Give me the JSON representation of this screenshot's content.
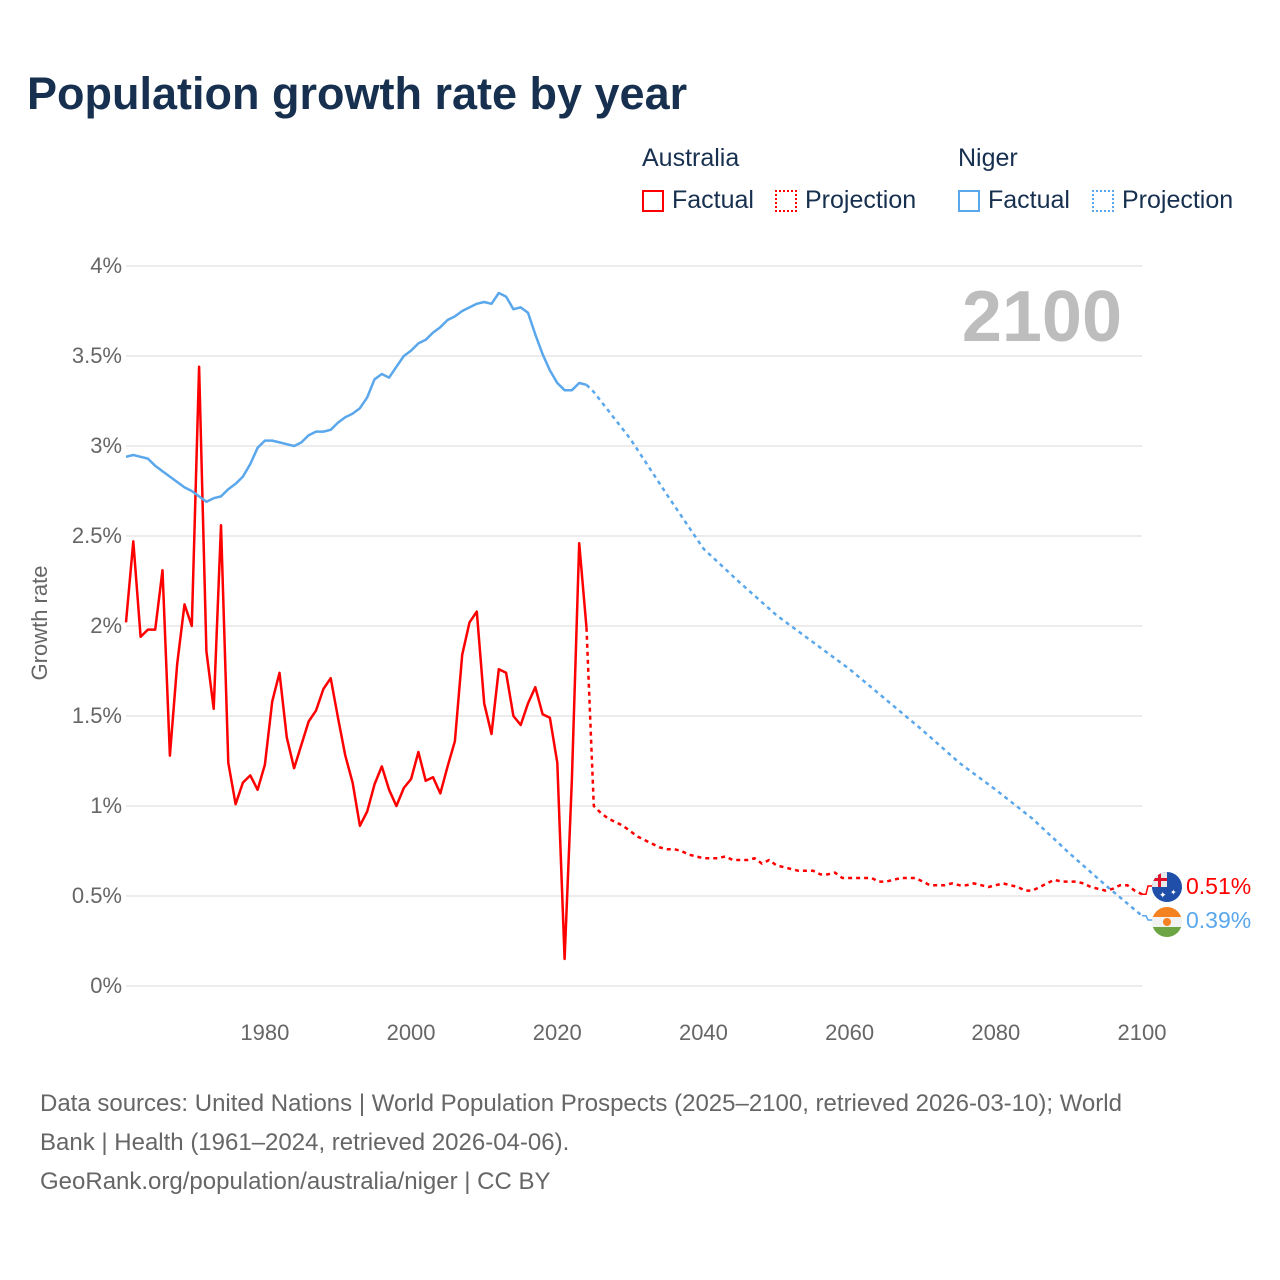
{
  "title": "Population growth rate by year",
  "legend": {
    "groups": [
      {
        "country": "Australia",
        "factual": "Factual",
        "projection": "Projection",
        "color": "#ff0000"
      },
      {
        "country": "Niger",
        "factual": "Factual",
        "projection": "Projection",
        "color": "#5aa7ec"
      }
    ]
  },
  "current_year": "2100",
  "end_labels": {
    "australia": "0.51%",
    "niger": "0.39%"
  },
  "footer": {
    "line1": "Data sources: United Nations | World Population Prospects (2025–2100, retrieved 2026-03-10); World",
    "line2": "Bank | Health (1961–2024, retrieved 2026-04-06).",
    "line3": "GeoRank.org/population/australia/niger | CC BY"
  },
  "chart_data": {
    "type": "line",
    "title": "Population growth rate by year",
    "xlabel": "",
    "ylabel": "Growth rate",
    "xlim": [
      1961,
      2100
    ],
    "ylim": [
      0,
      4
    ],
    "x_ticks": [
      1980,
      2000,
      2020,
      2040,
      2060,
      2080,
      2100
    ],
    "x_tick_labels": [
      "1980",
      "2000",
      "2020",
      "2040",
      "2060",
      "2080",
      "2100"
    ],
    "y_ticks": [
      0,
      0.5,
      1,
      1.5,
      2,
      2.5,
      3,
      3.5,
      4
    ],
    "y_tick_labels": [
      "0%",
      "0.5%",
      "1%",
      "1.5%",
      "2%",
      "2.5%",
      "3%",
      "3.5%",
      "4%"
    ],
    "grid": true,
    "legend_position": "top-right",
    "series": [
      {
        "name": "Australia Factual",
        "color": "#ff0000",
        "style": "solid",
        "x_start": 1961,
        "values": [
          2.02,
          2.47,
          1.94,
          1.98,
          1.98,
          2.31,
          1.28,
          1.79,
          2.12,
          2.0,
          3.44,
          1.86,
          1.54,
          2.56,
          1.24,
          1.01,
          1.13,
          1.17,
          1.09,
          1.23,
          1.58,
          1.74,
          1.38,
          1.21,
          1.34,
          1.47,
          1.53,
          1.65,
          1.71,
          1.49,
          1.28,
          1.13,
          0.89,
          0.97,
          1.12,
          1.22,
          1.09,
          1.0,
          1.1,
          1.15,
          1.3,
          1.14,
          1.16,
          1.07,
          1.22,
          1.36,
          1.84,
          2.02,
          2.08,
          1.57,
          1.4,
          1.76,
          1.74,
          1.5,
          1.45,
          1.57,
          1.66,
          1.51,
          1.49,
          1.24,
          0.15,
          1.15,
          2.46,
          1.99
        ]
      },
      {
        "name": "Australia Projection",
        "color": "#ff0000",
        "style": "dotted",
        "x_start": 2024,
        "values": [
          1.99,
          1.0,
          0.96,
          0.93,
          0.91,
          0.89,
          0.86,
          0.83,
          0.81,
          0.79,
          0.77,
          0.76,
          0.76,
          0.75,
          0.73,
          0.72,
          0.71,
          0.71,
          0.71,
          0.72,
          0.7,
          0.7,
          0.7,
          0.71,
          0.68,
          0.7,
          0.67,
          0.66,
          0.65,
          0.64,
          0.64,
          0.64,
          0.62,
          0.62,
          0.63,
          0.6,
          0.6,
          0.6,
          0.6,
          0.6,
          0.58,
          0.58,
          0.59,
          0.6,
          0.6,
          0.6,
          0.58,
          0.56,
          0.56,
          0.56,
          0.57,
          0.56,
          0.56,
          0.57,
          0.56,
          0.55,
          0.56,
          0.57,
          0.56,
          0.55,
          0.53,
          0.53,
          0.55,
          0.57,
          0.59,
          0.58,
          0.58,
          0.58,
          0.57,
          0.55,
          0.54,
          0.53,
          0.54,
          0.56,
          0.56,
          0.53,
          0.51
        ]
      },
      {
        "name": "Niger Factual",
        "color": "#5aa7ec",
        "style": "solid",
        "x_start": 1961,
        "values": [
          2.94,
          2.95,
          2.94,
          2.93,
          2.89,
          2.86,
          2.83,
          2.8,
          2.77,
          2.75,
          2.72,
          2.69,
          2.71,
          2.72,
          2.76,
          2.79,
          2.83,
          2.9,
          2.99,
          3.03,
          3.03,
          3.02,
          3.01,
          3.0,
          3.02,
          3.06,
          3.08,
          3.08,
          3.09,
          3.13,
          3.16,
          3.18,
          3.21,
          3.27,
          3.37,
          3.4,
          3.38,
          3.44,
          3.5,
          3.53,
          3.57,
          3.59,
          3.63,
          3.66,
          3.7,
          3.72,
          3.75,
          3.77,
          3.79,
          3.8,
          3.79,
          3.85,
          3.83,
          3.76,
          3.77,
          3.74,
          3.62,
          3.51,
          3.42,
          3.35,
          3.31,
          3.31,
          3.35,
          3.34
        ]
      },
      {
        "name": "Niger Projection",
        "color": "#5aa7ec",
        "style": "dotted",
        "x": [
          2024,
          2025,
          2030,
          2035,
          2040,
          2045,
          2050,
          2055,
          2060,
          2065,
          2070,
          2075,
          2080,
          2085,
          2090,
          2095,
          2100
        ],
        "values": [
          3.34,
          3.3,
          3.04,
          2.73,
          2.43,
          2.24,
          2.06,
          1.91,
          1.76,
          1.59,
          1.42,
          1.24,
          1.09,
          0.93,
          0.74,
          0.56,
          0.39
        ]
      }
    ]
  }
}
